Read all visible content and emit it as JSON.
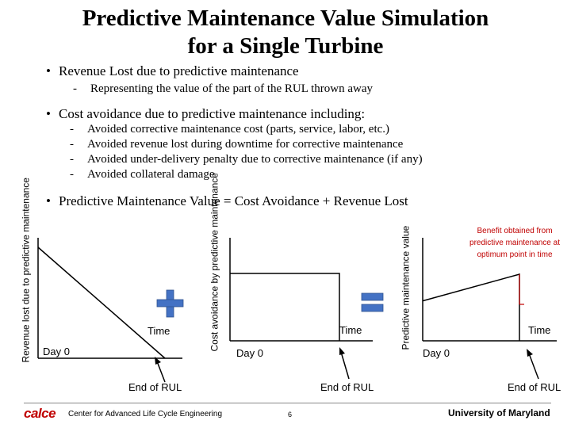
{
  "title": {
    "line1": "Predictive Maintenance Value Simulation",
    "line2": "for a Single Turbine"
  },
  "bullets": [
    {
      "text": "Revenue Lost due to predictive maintenance",
      "subs": [
        "Representing the value of the part of the RUL thrown away"
      ]
    },
    {
      "text": "Cost avoidance due to predictive maintenance including:",
      "subs": [
        "Avoided corrective maintenance cost (parts, service, labor, etc.)",
        "Avoided revenue lost during downtime for corrective maintenance",
        "Avoided under-delivery penalty due to corrective maintenance (if any)",
        "Avoided collateral damage"
      ]
    },
    {
      "text": "Predictive Maintenance Value = Cost Avoidance + Revenue Lost",
      "subs": []
    }
  ],
  "bullet_symbol": "•",
  "dash_symbol": "-",
  "operators": {
    "plus": "+",
    "equals": "="
  },
  "chart_data": [
    {
      "type": "line",
      "title": "",
      "ylabel": "Revenue lost due to predictive maintenance",
      "xlabel": "Time",
      "x_start_label": "Day 0",
      "x_end_label": "End of RUL",
      "shape": "decreasing linear from Day 0 to End of RUL",
      "x": [
        0,
        1
      ],
      "y": [
        1,
        0
      ]
    },
    {
      "type": "line",
      "title": "",
      "ylabel": "Cost avoidance by predictive maintenance",
      "xlabel": "Time",
      "x_start_label": "Day 0",
      "x_end_label": "End of RUL",
      "shape": "constant until End of RUL, then drops to zero",
      "x": [
        0,
        1,
        1
      ],
      "y": [
        1,
        1,
        0
      ]
    },
    {
      "type": "line",
      "title": "",
      "ylabel": "Predictive maintenance value",
      "xlabel": "Time",
      "x_start_label": "Day 0",
      "x_end_label": "End of RUL",
      "shape": "increasing linear, drops at End of RUL",
      "x": [
        0,
        1,
        1
      ],
      "y": [
        0.6,
        1,
        0
      ],
      "annotation": "Benefit obtained from predictive maintenance at optimum point in time"
    }
  ],
  "footer": {
    "logo": "calce",
    "center_name": "Center for Advanced Life Cycle Engineering",
    "page_number": "6",
    "university": "University of Maryland"
  },
  "colors": {
    "operator": "#4472c4",
    "annotation": "#c00000",
    "logo": "#c00000"
  }
}
